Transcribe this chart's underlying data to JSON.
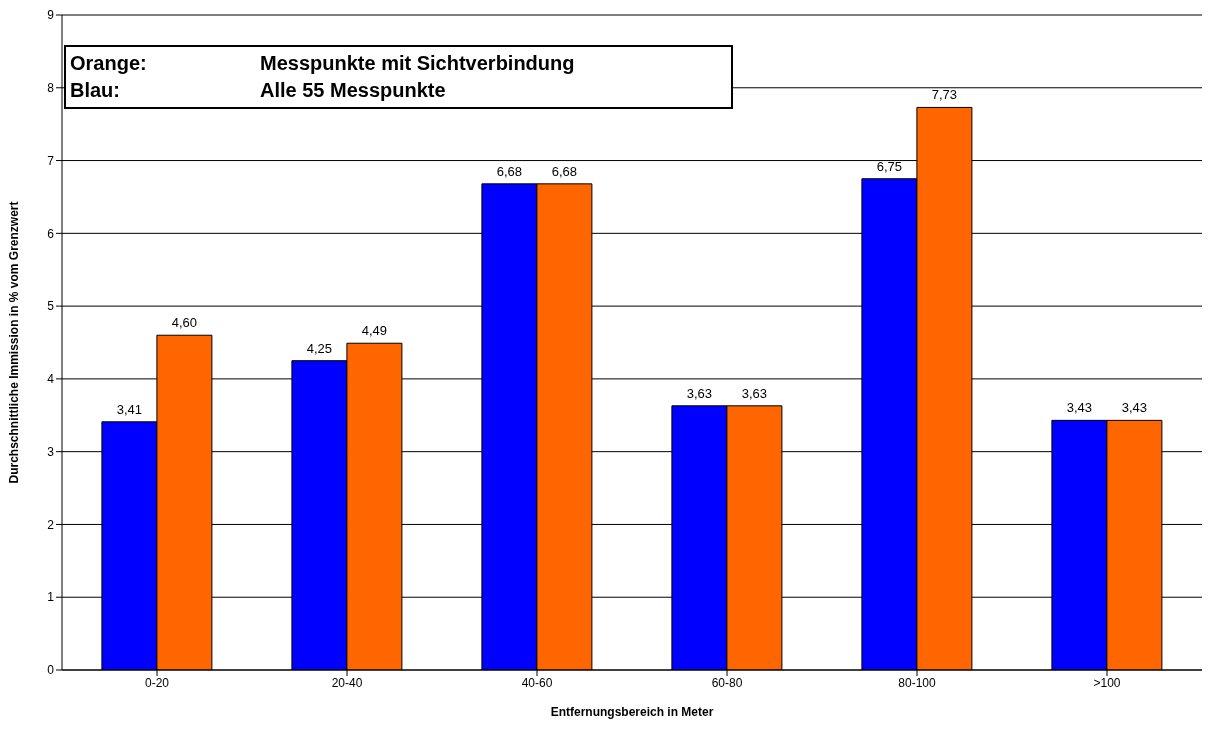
{
  "chart_data": {
    "type": "bar",
    "xlabel": "Entfernungsbereich in Meter",
    "ylabel": "Durchschnittliche Immission in % vom Grenzwert",
    "categories": [
      "0-20",
      "20-40",
      "40-60",
      "60-80",
      "80-100",
      ">100"
    ],
    "series": [
      {
        "color": "#0000ff",
        "values": [
          3.41,
          4.25,
          6.68,
          3.63,
          6.75,
          3.43
        ],
        "value_labels": [
          "3,41",
          "4,25",
          "6,68",
          "3,63",
          "6,75",
          "3,43"
        ]
      },
      {
        "color": "#ff6600",
        "values": [
          4.6,
          4.49,
          6.68,
          3.63,
          7.73,
          3.43
        ],
        "value_labels": [
          "4,60",
          "4,49",
          "6,68",
          "3,63",
          "7,73",
          "3,43"
        ]
      }
    ],
    "ylim": [
      0,
      9
    ],
    "yticks": [
      0,
      1,
      2,
      3,
      4,
      5,
      6,
      7,
      8,
      9
    ],
    "grid": "y",
    "legend": false,
    "annotations": [
      "Orange: Messpunkte mit Sichtverbindung",
      "Blau: Alle 55 Messpunkte"
    ]
  }
}
